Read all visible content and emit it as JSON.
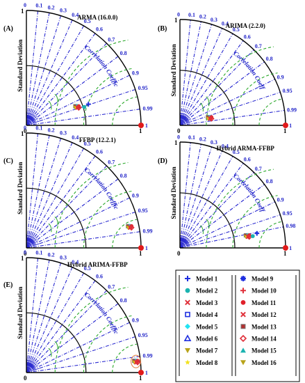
{
  "legend": {
    "left": [
      {
        "name": "Model 1",
        "color": "#1f2fe0",
        "shape": "plus"
      },
      {
        "name": "Model 2",
        "color": "#1ab3b0",
        "shape": "circle"
      },
      {
        "name": "Model 3",
        "color": "#e0303a",
        "shape": "x"
      },
      {
        "name": "Model 4",
        "color": "#1f2fe0",
        "shape": "square-open"
      },
      {
        "name": "Model 5",
        "color": "#22e3f2",
        "shape": "diamond"
      },
      {
        "name": "Model 6",
        "color": "#1f2fe0",
        "shape": "triangle-open"
      },
      {
        "name": "Model 7",
        "color": "#b8a31a",
        "shape": "triangle-down"
      },
      {
        "name": "Model 8",
        "color": "#f2e21f",
        "shape": "star"
      }
    ],
    "right": [
      {
        "name": "Model 9",
        "color": "#1f2fe0",
        "shape": "asterisk"
      },
      {
        "name": "Model 10",
        "color": "#e0303a",
        "shape": "plus"
      },
      {
        "name": "Model 11",
        "color": "#e0202a",
        "shape": "circle"
      },
      {
        "name": "Model 12",
        "color": "#e0303a",
        "shape": "x"
      },
      {
        "name": "Model 13",
        "color": "#b33030",
        "shape": "square-filled"
      },
      {
        "name": "Model 14",
        "color": "#e0303a",
        "shape": "diamond-open"
      },
      {
        "name": "Model 15",
        "color": "#1ab3b0",
        "shape": "triangle"
      },
      {
        "name": "Model 16",
        "color": "#b8a31a",
        "shape": "triangle-down"
      }
    ]
  },
  "chart_data": [
    {
      "type": "taylor",
      "label": "(A)",
      "title": "ARMA (16.0.0)",
      "ylabel": "Standard Deviation",
      "cc_title": "Correlation Coefficient",
      "cc_ticks": [
        "0",
        "0.1",
        "0.2",
        "0.3",
        "0.4",
        "0.5",
        "0.6",
        "0.7",
        "0.8",
        "0.9",
        "0.95",
        "0.99",
        "1"
      ],
      "sd_ticks": [
        "0",
        "1",
        "1"
      ],
      "reference": {
        "sd": 1,
        "cc": 1
      },
      "models_cluster": {
        "sd": 0.47,
        "cc": 0.94
      },
      "highlight_model": {
        "name": "Model 1",
        "sd": 0.55,
        "cc": 0.95
      }
    },
    {
      "type": "taylor",
      "label": "(B)",
      "title": "ARIMA (2.2.0)",
      "ylabel": "Standard Deviation",
      "cc_title": "Correlation Coefficient",
      "cc_ticks": [
        "0",
        "0.1",
        "0.2",
        "0.3",
        "0.4",
        "0.5",
        "0.6",
        "0.7",
        "0.8",
        "0.9",
        "0.95",
        "0.99",
        "1"
      ],
      "sd_ticks": [
        "0",
        "1",
        "1"
      ],
      "reference": {
        "sd": 1,
        "cc": 1
      },
      "models_cluster": {
        "sd": 0.29,
        "cc": 0.97
      }
    },
    {
      "type": "taylor",
      "label": "(C)",
      "title": "FFBP (12.2.1)",
      "ylabel": "Standard Deviation",
      "cc_title": "Correlation Coefficient",
      "cc_ticks": [
        "0",
        "0.1",
        "0.2",
        "0.3",
        "0.4",
        "0.5",
        "0.6",
        "0.7",
        "0.8",
        "0.9",
        "0.95",
        "0.99",
        "1"
      ],
      "sd_ticks": [
        "0",
        "1",
        "1"
      ],
      "reference": {
        "sd": 1,
        "cc": 1
      },
      "models_cluster": {
        "sd": 0.92,
        "cc": 0.98
      }
    },
    {
      "type": "taylor",
      "label": "(D)",
      "title": "Hybrid ARMA-FFBP",
      "ylabel": "Standard Deviation",
      "cc_title": "Correlation Coefficient",
      "cc_ticks": [
        "0",
        "0.1",
        "0.2",
        "0.3",
        "0.4",
        "0.5",
        "0.6",
        "0.7",
        "0.8",
        "0.9",
        "0.95",
        "0.98",
        "1"
      ],
      "sd_ticks": [
        "0",
        "1",
        "1"
      ],
      "reference": {
        "sd": 1,
        "cc": 1
      },
      "models_cluster": {
        "sd": 0.65,
        "cc": 0.985
      },
      "highlight_model": {
        "name": "Model 1",
        "sd": 0.72,
        "cc": 0.985
      }
    },
    {
      "type": "taylor",
      "label": "(E)",
      "title": "Hybrid ARIMA-FFBP",
      "ylabel": "Standard Deviation",
      "cc_title": "Correlation Coefficient",
      "cc_ticks": [
        "0",
        "0.1",
        "0.2",
        "0.3",
        "0.4",
        "0.5",
        "0.6",
        "0.7",
        "0.8",
        "0.9",
        "0.95",
        "0.99",
        "1"
      ],
      "sd_ticks": [
        "0",
        "1",
        "1"
      ],
      "reference": {
        "sd": 1,
        "cc": 1
      },
      "models_cluster": {
        "sd": 0.96,
        "cc": 0.995
      }
    }
  ]
}
